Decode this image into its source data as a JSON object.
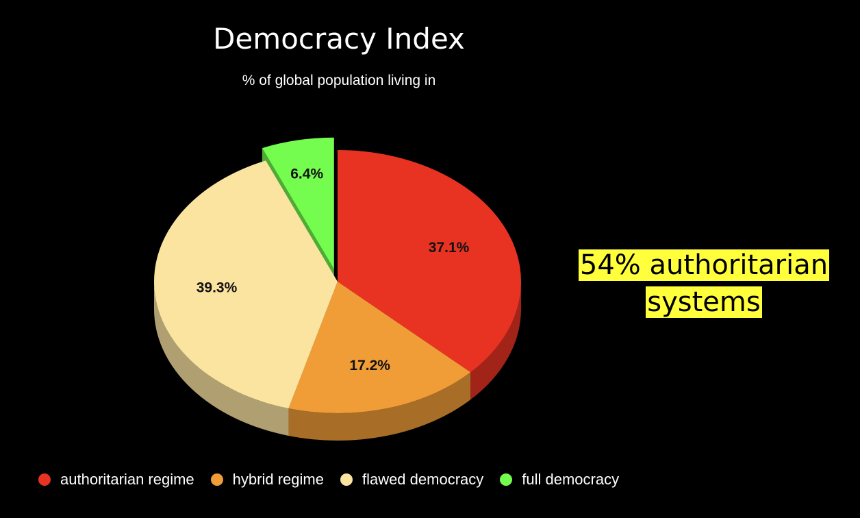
{
  "chart_data": {
    "type": "pie",
    "title": "Democracy Index",
    "subtitle": "% of global population living in",
    "categories": [
      "authoritarian regime",
      "hybrid regime",
      "flawed democracy",
      "full democracy"
    ],
    "values": [
      37.1,
      17.2,
      39.3,
      6.4
    ],
    "data_labels": [
      "37.1%",
      "17.2%",
      "39.3%",
      "6.4%"
    ],
    "colors": [
      "#e83323",
      "#f09d38",
      "#fbe3a0",
      "#74fc4e"
    ],
    "exploded": [
      "full democracy"
    ],
    "style": "3d",
    "legend_position": "bottom"
  },
  "annotation": {
    "line1": "54% authoritarian",
    "line2": "systems",
    "highlight_color": "#ffff3c"
  }
}
